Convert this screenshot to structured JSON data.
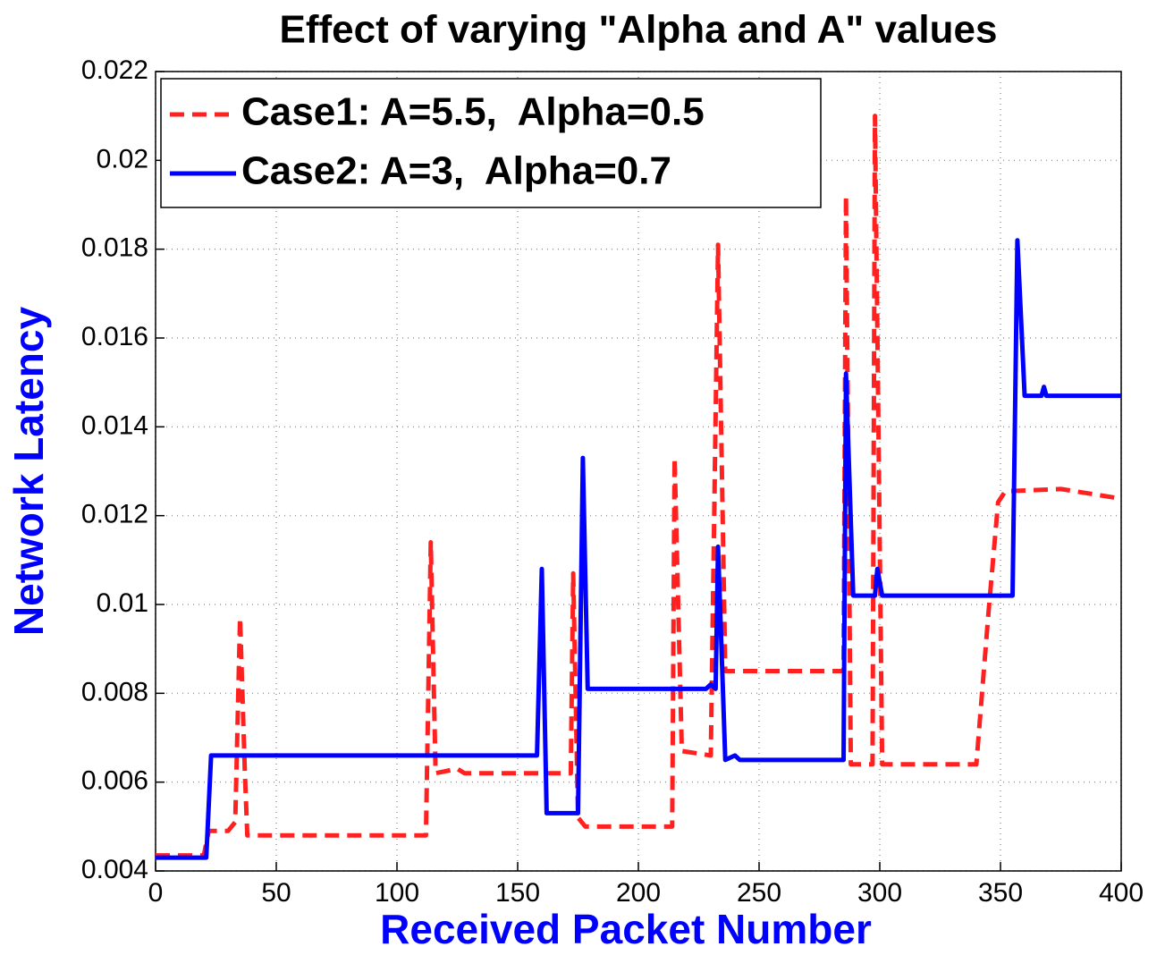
{
  "chart_data": {
    "type": "line",
    "title": "Effect of varying \"Alpha and A\" values",
    "xlabel": "Received Packet Number",
    "ylabel": "Network Latency",
    "xlim": [
      0,
      400
    ],
    "xticks": [
      0,
      50,
      100,
      150,
      200,
      250,
      300,
      350,
      400
    ],
    "ylim": [
      0.004,
      0.022
    ],
    "yticks": [
      0.004,
      0.006,
      0.008,
      0.01,
      0.012,
      0.014,
      0.016,
      0.018,
      0.02,
      0.022
    ],
    "grid": true,
    "legend": "upper left",
    "series": [
      {
        "name": "Case1: A=5.5,  Alpha=0.5",
        "color": "#ff2020",
        "linestyle": "--",
        "x": [
          0,
          20,
          22,
          30,
          33,
          35,
          37,
          38,
          112,
          114,
          116,
          125,
          128,
          172,
          173,
          175,
          178,
          214,
          215,
          218,
          230,
          233,
          236,
          285,
          286,
          288,
          297,
          298,
          301,
          340,
          345,
          349,
          352,
          375,
          398
        ],
        "values": [
          0.00435,
          0.00435,
          0.0049,
          0.0049,
          0.0051,
          0.0097,
          0.0062,
          0.0048,
          0.0048,
          0.0114,
          0.0062,
          0.0063,
          0.0062,
          0.0062,
          0.0107,
          0.0052,
          0.005,
          0.005,
          0.0133,
          0.0067,
          0.0066,
          0.0181,
          0.0085,
          0.0085,
          0.0192,
          0.0064,
          0.0064,
          0.021,
          0.0064,
          0.0064,
          0.0098,
          0.0123,
          0.01255,
          0.0126,
          0.0124
        ]
      },
      {
        "name": "Case2: A=3,  Alpha=0.7",
        "color": "#0000ff",
        "linestyle": "-",
        "x": [
          0,
          21,
          23,
          158,
          160,
          162,
          175,
          177,
          179,
          228,
          230,
          232,
          233,
          236,
          240,
          242,
          285,
          286,
          289,
          298,
          299,
          301,
          355,
          357,
          360,
          367,
          368,
          369,
          400
        ],
        "values": [
          0.0043,
          0.0043,
          0.0066,
          0.0066,
          0.0108,
          0.0053,
          0.0053,
          0.0133,
          0.0081,
          0.0081,
          0.0082,
          0.0081,
          0.0113,
          0.0065,
          0.0066,
          0.0065,
          0.0065,
          0.0152,
          0.0102,
          0.0102,
          0.0108,
          0.0102,
          0.0102,
          0.0182,
          0.0147,
          0.0147,
          0.0149,
          0.0147,
          0.0147
        ]
      }
    ]
  }
}
